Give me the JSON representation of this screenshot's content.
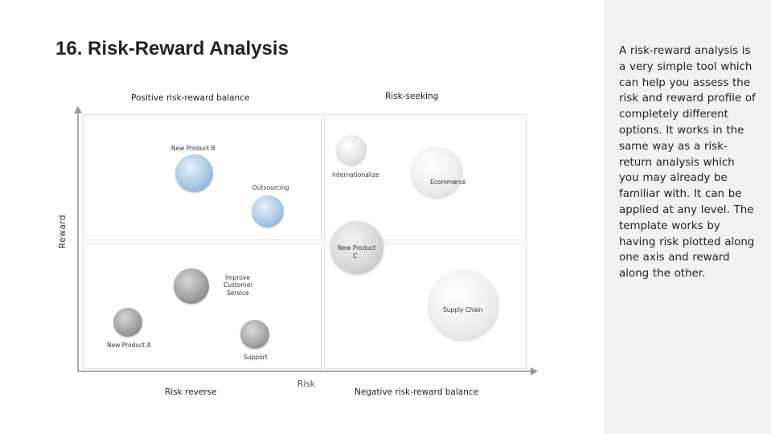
{
  "page": {
    "title": "16. Risk-Reward Analysis",
    "sidebar_text": "A risk-reward analysis is a very simple tool which can help you assess the risk and reward profile of completely different options. It works in the same way as a risk-return analysis which you may already be familiar with. It can be applied at any level. The template works by having risk plotted along one axis and reward along the other."
  },
  "diagram": {
    "quadrants": {
      "top_left": "Positive risk-reward balance",
      "top_right": "Risk-seeking",
      "bottom_left": "Risk reverse",
      "bottom_right": "Negative risk-reward balance"
    },
    "axes": {
      "y": "Reward",
      "x": "Risk"
    },
    "items": [
      {
        "label": "New Product B",
        "color": "#8fb5d6"
      },
      {
        "label": "Internationalize",
        "color": "#dcdcdc"
      },
      {
        "label": "Ecommerce",
        "color": "#e4e4e4"
      },
      {
        "label": "Outsourcing",
        "color": "#8fb5d6"
      },
      {
        "label": "New Product",
        "label2": "C",
        "color": "#d0d0d0"
      },
      {
        "label": "Improve",
        "label2": "Customer",
        "label3": "Service",
        "color": "#9a9a9a"
      },
      {
        "label": "Supply Chain",
        "color": "#e8e8e8"
      },
      {
        "label": "New Product A",
        "color": "#9a9a9a"
      },
      {
        "label": "Support",
        "color": "#a0a0a0"
      }
    ]
  }
}
